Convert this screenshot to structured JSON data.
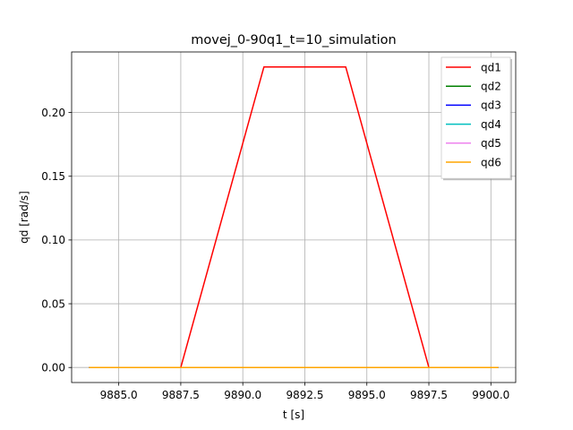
{
  "chart_data": {
    "type": "line",
    "title": "movej_0-90q1_t=10_simulation",
    "xlabel": "t [s]",
    "ylabel": "qd [rad/s]",
    "xlim": [
      9883.1,
      9901.0
    ],
    "ylim": [
      -0.0118,
      0.2475
    ],
    "xticks": [
      9885.0,
      9887.5,
      9890.0,
      9892.5,
      9895.0,
      9897.5,
      9900.0
    ],
    "xtick_labels": [
      "9885.0",
      "9887.5",
      "9890.0",
      "9892.5",
      "9895.0",
      "9897.5",
      "9900.0"
    ],
    "yticks": [
      0.0,
      0.05,
      0.1,
      0.15,
      0.2
    ],
    "ytick_labels": [
      "0.00",
      "0.05",
      "0.10",
      "0.15",
      "0.20"
    ],
    "grid": true,
    "legend_position": "top-right",
    "series": [
      {
        "name": "qd1",
        "color": "#ff0000",
        "x": [
          9883.8,
          9887.5,
          9890.85,
          9894.15,
          9897.5,
          9900.3
        ],
        "y": [
          0.0,
          0.0,
          0.2357,
          0.2357,
          0.0,
          0.0
        ]
      },
      {
        "name": "qd2",
        "color": "#008000",
        "x": [
          9883.8,
          9900.3
        ],
        "y": [
          0.0,
          0.0
        ]
      },
      {
        "name": "qd3",
        "color": "#0000ff",
        "x": [
          9883.8,
          9900.3
        ],
        "y": [
          0.0,
          0.0
        ]
      },
      {
        "name": "qd4",
        "color": "#00bfbf",
        "x": [
          9883.8,
          9900.3
        ],
        "y": [
          0.0,
          0.0
        ]
      },
      {
        "name": "qd5",
        "color": "#ee82ee",
        "x": [
          9883.8,
          9900.3
        ],
        "y": [
          0.0,
          0.0
        ]
      },
      {
        "name": "qd6",
        "color": "#ffa500",
        "x": [
          9883.8,
          9900.3
        ],
        "y": [
          0.0,
          0.0
        ]
      }
    ]
  }
}
